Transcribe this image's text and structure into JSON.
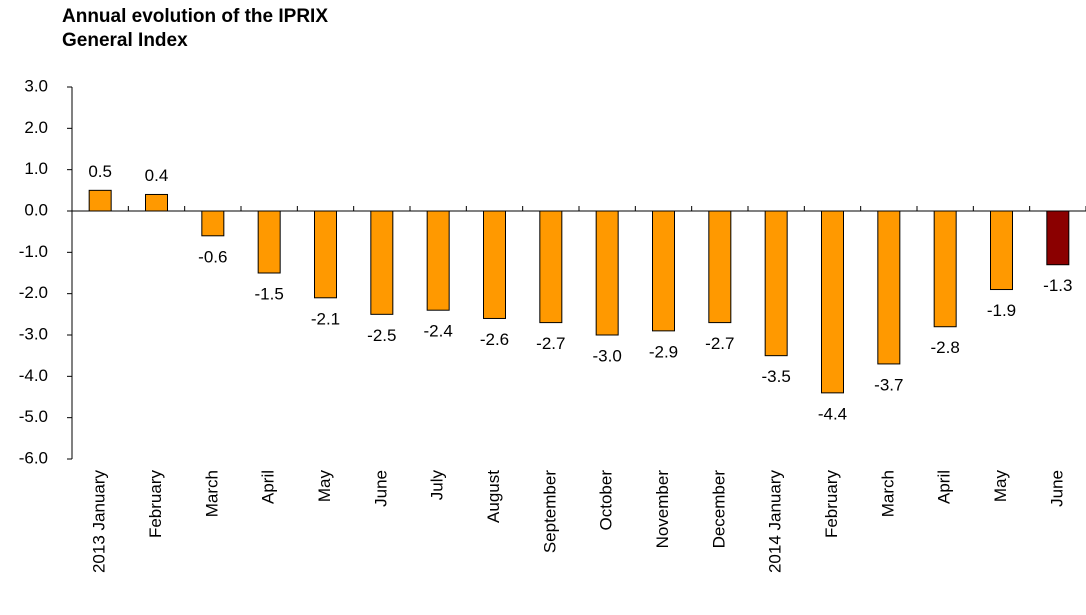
{
  "chart_data": {
    "type": "bar",
    "title": [
      "Annual evolution of the IPRIX",
      "General Index"
    ],
    "categories": [
      "2013 January",
      "February",
      "March",
      "April",
      "May",
      "June",
      "July",
      "August",
      "September",
      "October",
      "November",
      "December",
      "2014 January",
      "February",
      "March",
      "April",
      "May",
      "June"
    ],
    "values": [
      0.5,
      0.4,
      -0.6,
      -1.5,
      -2.1,
      -2.5,
      -2.4,
      -2.6,
      -2.7,
      -3.0,
      -2.9,
      -2.7,
      -3.5,
      -4.4,
      -3.7,
      -2.8,
      -1.9,
      -1.3
    ],
    "value_labels": [
      "0.5",
      "0.4",
      "-0.6",
      "-1.5",
      "-2.1",
      "-2.5",
      "-2.4",
      "-2.6",
      "-2.7",
      "-3.0",
      "-2.9",
      "-2.7",
      "-3.5",
      "-4.4",
      "-3.7",
      "-2.8",
      "-1.9",
      "-1.3"
    ],
    "colors": [
      "#ff9900",
      "#ff9900",
      "#ff9900",
      "#ff9900",
      "#ff9900",
      "#ff9900",
      "#ff9900",
      "#ff9900",
      "#ff9900",
      "#ff9900",
      "#ff9900",
      "#ff9900",
      "#ff9900",
      "#ff9900",
      "#ff9900",
      "#ff9900",
      "#ff9900",
      "#8b0000"
    ],
    "ylim": [
      -6,
      3
    ],
    "yticks": [
      {
        "value": -6,
        "label": "-6.0"
      },
      {
        "value": -5,
        "label": "-5.0"
      },
      {
        "value": -4,
        "label": "-4.0"
      },
      {
        "value": -3,
        "label": "-3.0"
      },
      {
        "value": -2,
        "label": "-2.0"
      },
      {
        "value": -1,
        "label": "-1.0"
      },
      {
        "value": 0,
        "label": "0.0"
      },
      {
        "value": 1,
        "label": "1.0"
      },
      {
        "value": 2,
        "label": "2.0"
      },
      {
        "value": 3,
        "label": "3.0"
      }
    ],
    "grid": false
  }
}
